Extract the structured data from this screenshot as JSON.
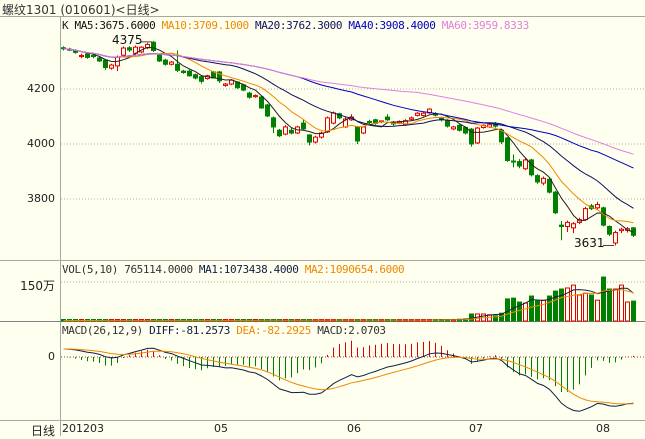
{
  "title": "螺纹1301 (010601)<日线>",
  "price_legend": {
    "prefix": "K",
    "ma5": "MA5:3675.6000",
    "ma10": "MA10:3709.1000",
    "ma20": "MA20:3762.3000",
    "ma40": "MA40:3908.4000",
    "ma60": "MA60:3959.8333"
  },
  "volume_legend": {
    "label": "VOL(5,10) 765114.0000",
    "ma1": "MA1:1073438.4000",
    "ma2": "MA2:1090654.6000"
  },
  "macd_legend": {
    "label": "MACD(26,12,9)",
    "diff": "DIFF:-81.2573",
    "dea": "DEA:-82.2925",
    "macd": "MACD:2.0703"
  },
  "price_axis": [
    "4200",
    "4000",
    "3800"
  ],
  "volume_axis": "150万",
  "macd_axis": "0",
  "period_label": "日线",
  "date_axis": [
    "201203",
    "05",
    "06",
    "07",
    "08"
  ],
  "annotations": {
    "high": "4375",
    "low": "3631"
  },
  "colors": {
    "background": "#fffff0",
    "up": "#e00000",
    "down": "#008000",
    "ma5": "#202020",
    "ma10": "#ee8800",
    "ma20": "#101060",
    "ma40": "#0000c0",
    "ma60": "#e080e0",
    "diff": "#102040",
    "dea": "#ee8800"
  },
  "chart_data": {
    "type": "candlestick",
    "title": "螺纹1301 (010601)<日线>",
    "price_ticks": [
      4200,
      4000,
      3800
    ],
    "high_mark": 4375,
    "low_mark": 3631,
    "ma_periods": [
      5,
      10,
      20,
      40,
      60
    ],
    "ohlc": [
      [
        4350,
        4355,
        4340,
        4347
      ],
      [
        4345,
        4350,
        4338,
        4342
      ],
      [
        4340,
        4344,
        4328,
        4333
      ],
      [
        4318,
        4328,
        4312,
        4322
      ],
      [
        4328,
        4332,
        4310,
        4315
      ],
      [
        4322,
        4326,
        4312,
        4318
      ],
      [
        4313,
        4318,
        4298,
        4302
      ],
      [
        4305,
        4308,
        4270,
        4278
      ],
      [
        4276,
        4292,
        4270,
        4287
      ],
      [
        4284,
        4322,
        4265,
        4316
      ],
      [
        4323,
        4355,
        4318,
        4349
      ],
      [
        4350,
        4356,
        4335,
        4342
      ],
      [
        4330,
        4358,
        4325,
        4352
      ],
      [
        4335,
        4356,
        4330,
        4352
      ],
      [
        4350,
        4368,
        4345,
        4362
      ],
      [
        4370,
        4375,
        4335,
        4340
      ],
      [
        4323,
        4328,
        4298,
        4302
      ],
      [
        4305,
        4310,
        4285,
        4290
      ],
      [
        4290,
        4302,
        4286,
        4298
      ],
      [
        4290,
        4340,
        4262,
        4268
      ],
      [
        4265,
        4270,
        4255,
        4260
      ],
      [
        4265,
        4270,
        4245,
        4248
      ],
      [
        4252,
        4256,
        4235,
        4240
      ],
      [
        4245,
        4250,
        4220,
        4228
      ],
      [
        4238,
        4252,
        4234,
        4248
      ],
      [
        4262,
        4266,
        4238,
        4240
      ],
      [
        4262,
        4265,
        4222,
        4230
      ],
      [
        4213,
        4222,
        4208,
        4218
      ],
      [
        4218,
        4236,
        4214,
        4232
      ],
      [
        4225,
        4228,
        4200,
        4205
      ],
      [
        4215,
        4218,
        4192,
        4196
      ],
      [
        4185,
        4190,
        4165,
        4170
      ],
      [
        4172,
        4180,
        4168,
        4176
      ],
      [
        4171,
        4175,
        4128,
        4131
      ],
      [
        4142,
        4146,
        4098,
        4102
      ],
      [
        4095,
        4100,
        4040,
        4062
      ],
      [
        4050,
        4055,
        4025,
        4030
      ],
      [
        4036,
        4068,
        4032,
        4062
      ],
      [
        4050,
        4060,
        4035,
        4040
      ],
      [
        4040,
        4066,
        4036,
        4062
      ],
      [
        4076,
        4090,
        4050,
        4055
      ],
      [
        4033,
        4036,
        3995,
        4007
      ],
      [
        4007,
        4030,
        4002,
        4025
      ],
      [
        4025,
        4045,
        4020,
        4040
      ],
      [
        4044,
        4100,
        4040,
        4095
      ],
      [
        4076,
        4118,
        4072,
        4113
      ],
      [
        4110,
        4114,
        4090,
        4095
      ],
      [
        4062,
        4100,
        4058,
        4091
      ],
      [
        4088,
        4108,
        4084,
        4098
      ],
      [
        4062,
        4066,
        4000,
        4011
      ],
      [
        4040,
        4066,
        4036,
        4062
      ],
      [
        4082,
        4088,
        4074,
        4080
      ],
      [
        4088,
        4092,
        4070,
        4075
      ],
      [
        4080,
        4086,
        4076,
        4084
      ],
      [
        4098,
        4108,
        4084,
        4088
      ],
      [
        4080,
        4084,
        4066,
        4073
      ],
      [
        4076,
        4086,
        4072,
        4082
      ],
      [
        4070,
        4090,
        4066,
        4085
      ],
      [
        4090,
        4100,
        4086,
        4095
      ],
      [
        4104,
        4116,
        4100,
        4112
      ],
      [
        4104,
        4116,
        4100,
        4112
      ],
      [
        4113,
        4130,
        4110,
        4127
      ],
      [
        4110,
        4116,
        4100,
        4105
      ],
      [
        4095,
        4100,
        4082,
        4088
      ],
      [
        4085,
        4090,
        4060,
        4065
      ],
      [
        4055,
        4066,
        4050,
        4062
      ],
      [
        4068,
        4072,
        4045,
        4050
      ],
      [
        4060,
        4064,
        4035,
        4040
      ],
      [
        4054,
        4058,
        3990,
        4000
      ],
      [
        4004,
        4062,
        4000,
        4058
      ],
      [
        4060,
        4072,
        4056,
        4068
      ],
      [
        4062,
        4074,
        4058,
        4070
      ],
      [
        4072,
        4080,
        4060,
        4065
      ],
      [
        4050,
        4054,
        4000,
        4008
      ],
      [
        4022,
        4025,
        3935,
        3940
      ],
      [
        3938,
        3962,
        3915,
        3935
      ],
      [
        3936,
        3945,
        3912,
        3920
      ],
      [
        3910,
        3948,
        3905,
        3942
      ],
      [
        3942,
        3946,
        3882,
        3888
      ],
      [
        3885,
        3890,
        3855,
        3862
      ],
      [
        3858,
        3882,
        3850,
        3875
      ],
      [
        3872,
        3876,
        3820,
        3825
      ],
      [
        3825,
        3830,
        3745,
        3750
      ],
      [
        3705,
        3720,
        3650,
        3700
      ],
      [
        3700,
        3722,
        3680,
        3715
      ],
      [
        3695,
        3716,
        3676,
        3710
      ],
      [
        3715,
        3732,
        3708,
        3725
      ],
      [
        3725,
        3772,
        3720,
        3765
      ],
      [
        3775,
        3782,
        3760,
        3765
      ],
      [
        3768,
        3790,
        3762,
        3780
      ],
      [
        3768,
        3772,
        3700,
        3705
      ],
      [
        3700,
        3704,
        3665,
        3672
      ],
      [
        3640,
        3685,
        3631,
        3678
      ],
      [
        3685,
        3696,
        3676,
        3690
      ],
      [
        3686,
        3698,
        3678,
        3692
      ],
      [
        3695,
        3698,
        3662,
        3668
      ]
    ],
    "volume": [
      20000,
      22000,
      18000,
      20000,
      24000,
      20000,
      22000,
      26000,
      22000,
      25000,
      24000,
      22000,
      20000,
      22000,
      24000,
      30000,
      26000,
      24000,
      20000,
      28000,
      22000,
      24000,
      22000,
      26000,
      22000,
      24000,
      26000,
      20000,
      22000,
      26000,
      28000,
      30000,
      22000,
      34000,
      36000,
      38000,
      30000,
      32000,
      28000,
      30000,
      34000,
      36000,
      30000,
      32000,
      40000,
      38000,
      34000,
      36000,
      32000,
      42000,
      36000,
      32000,
      34000,
      30000,
      34000,
      36000,
      32000,
      34000,
      36000,
      40000,
      42000,
      46000,
      44000,
      50000,
      56000,
      60000,
      70000,
      80000,
      270000,
      270000,
      270000,
      240000,
      200000,
      300000,
      850000,
      880000,
      730000,
      690000,
      960000,
      770000,
      800000,
      960000,
      1150000,
      1230000,
      1270000,
      1380000,
      1000000,
      1070000,
      1000000,
      800000,
      1690000,
      1230000,
      1230000,
      1380000,
      730000,
      765114
    ],
    "volume_tick": 1500000,
    "macd_params": [
      26,
      12,
      9
    ]
  }
}
